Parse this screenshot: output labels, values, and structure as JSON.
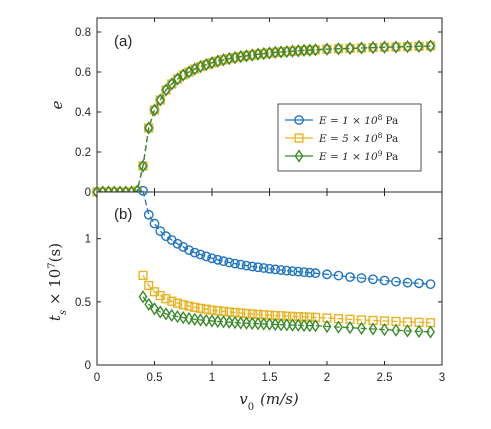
{
  "chart_data": [
    {
      "type": "line",
      "panel_label": "(a)",
      "ylabel": "e",
      "xlim": [
        0,
        3
      ],
      "ylim": [
        0,
        0.87
      ],
      "yticks": [
        0,
        0.2,
        0.4,
        0.6,
        0.8
      ],
      "ytick_labels": [
        "0",
        "0.2",
        "0.4",
        "0.6",
        "0.8"
      ],
      "grid": false,
      "legend_position": "right",
      "x_axis_ticks_only": true,
      "series": [
        {
          "name": "E = 1 × 10^8 Pa",
          "legend_main": "E = 1 × 10",
          "legend_exp": "8",
          "legend_unit": "Pa",
          "color": "#1f74c4",
          "marker": "circle",
          "x": [
            0.0,
            0.05,
            0.1,
            0.15,
            0.2,
            0.25,
            0.3,
            0.35,
            0.4,
            0.45,
            0.5,
            0.55,
            0.6,
            0.65,
            0.7,
            0.75,
            0.8,
            0.85,
            0.9,
            0.95,
            1.0,
            1.05,
            1.1,
            1.15,
            1.2,
            1.25,
            1.3,
            1.35,
            1.4,
            1.45,
            1.5,
            1.55,
            1.6,
            1.65,
            1.7,
            1.75,
            1.8,
            1.85,
            1.9,
            2.0,
            2.1,
            2.2,
            2.3,
            2.4,
            2.5,
            2.6,
            2.7,
            2.8,
            2.9
          ],
          "y": [
            0.0,
            0.0,
            0.0,
            0.0,
            0.0,
            0.0,
            0.0,
            0.005,
            0.13,
            0.32,
            0.41,
            0.46,
            0.51,
            0.54,
            0.565,
            0.585,
            0.6,
            0.615,
            0.627,
            0.637,
            0.646,
            0.654,
            0.661,
            0.667,
            0.672,
            0.677,
            0.681,
            0.685,
            0.689,
            0.692,
            0.695,
            0.698,
            0.7,
            0.702,
            0.704,
            0.706,
            0.708,
            0.709,
            0.711,
            0.714,
            0.716,
            0.718,
            0.72,
            0.722,
            0.724,
            0.725,
            0.727,
            0.728,
            0.73
          ]
        },
        {
          "name": "E = 5 × 10^8 Pa",
          "legend_main": "E = 5 × 10",
          "legend_exp": "8",
          "legend_unit": "Pa",
          "color": "#e8b322",
          "marker": "square",
          "x": [
            0.0,
            0.05,
            0.1,
            0.15,
            0.2,
            0.25,
            0.3,
            0.35,
            0.4,
            0.45,
            0.5,
            0.55,
            0.6,
            0.65,
            0.7,
            0.75,
            0.8,
            0.85,
            0.9,
            0.95,
            1.0,
            1.05,
            1.1,
            1.15,
            1.2,
            1.25,
            1.3,
            1.35,
            1.4,
            1.45,
            1.5,
            1.55,
            1.6,
            1.65,
            1.7,
            1.75,
            1.8,
            1.85,
            1.9,
            2.0,
            2.1,
            2.2,
            2.3,
            2.4,
            2.5,
            2.6,
            2.7,
            2.8,
            2.9
          ],
          "y": [
            0.0,
            0.0,
            0.0,
            0.0,
            0.0,
            0.0,
            0.0,
            0.005,
            0.13,
            0.32,
            0.41,
            0.46,
            0.51,
            0.54,
            0.565,
            0.585,
            0.6,
            0.615,
            0.627,
            0.637,
            0.646,
            0.654,
            0.661,
            0.667,
            0.672,
            0.677,
            0.681,
            0.685,
            0.689,
            0.692,
            0.695,
            0.698,
            0.7,
            0.702,
            0.704,
            0.706,
            0.708,
            0.709,
            0.711,
            0.714,
            0.716,
            0.718,
            0.72,
            0.722,
            0.724,
            0.725,
            0.727,
            0.728,
            0.73
          ]
        },
        {
          "name": "E = 1 × 10^9 Pa",
          "legend_main": "E = 1 × 10",
          "legend_exp": "9",
          "legend_unit": "Pa",
          "color": "#3b8a2a",
          "marker": "diamond",
          "x": [
            0.0,
            0.05,
            0.1,
            0.15,
            0.2,
            0.25,
            0.3,
            0.35,
            0.4,
            0.45,
            0.5,
            0.55,
            0.6,
            0.65,
            0.7,
            0.75,
            0.8,
            0.85,
            0.9,
            0.95,
            1.0,
            1.05,
            1.1,
            1.15,
            1.2,
            1.25,
            1.3,
            1.35,
            1.4,
            1.45,
            1.5,
            1.55,
            1.6,
            1.65,
            1.7,
            1.75,
            1.8,
            1.85,
            1.9,
            2.0,
            2.1,
            2.2,
            2.3,
            2.4,
            2.5,
            2.6,
            2.7,
            2.8,
            2.9
          ],
          "y": [
            0.0,
            0.0,
            0.0,
            0.0,
            0.0,
            0.0,
            0.0,
            0.005,
            0.13,
            0.32,
            0.41,
            0.46,
            0.51,
            0.54,
            0.565,
            0.585,
            0.6,
            0.615,
            0.627,
            0.637,
            0.646,
            0.654,
            0.661,
            0.667,
            0.672,
            0.677,
            0.681,
            0.685,
            0.689,
            0.692,
            0.695,
            0.698,
            0.7,
            0.702,
            0.704,
            0.706,
            0.708,
            0.709,
            0.711,
            0.714,
            0.716,
            0.718,
            0.72,
            0.722,
            0.724,
            0.725,
            0.727,
            0.728,
            0.73
          ]
        }
      ]
    },
    {
      "type": "line",
      "panel_label": "(b)",
      "ylabel_main": "t",
      "ylabel_sub": "s",
      "ylabel_rest": " × 10",
      "ylabel_exp": "7",
      "ylabel_unit": "(s)",
      "xlabel_main": "v",
      "xlabel_sub": "0",
      "xlabel_unit": "(m/s)",
      "xlim": [
        0,
        3
      ],
      "ylim": [
        0,
        1.37
      ],
      "xticks": [
        0,
        0.5,
        1,
        1.5,
        2,
        2.5,
        3
      ],
      "xtick_labels": [
        "0",
        "0.5",
        "1",
        "1.5",
        "2",
        "2.5",
        "3"
      ],
      "yticks": [
        0,
        0.5,
        1
      ],
      "ytick_labels": [
        "0",
        "0.5",
        "1"
      ],
      "grid": false,
      "series": [
        {
          "name": "E = 1 × 10^8 Pa",
          "color": "#1f74c4",
          "marker": "circle",
          "x": [
            0.4,
            0.45,
            0.5,
            0.55,
            0.6,
            0.65,
            0.7,
            0.75,
            0.8,
            0.85,
            0.9,
            0.95,
            1.0,
            1.05,
            1.1,
            1.15,
            1.2,
            1.25,
            1.3,
            1.35,
            1.4,
            1.45,
            1.5,
            1.55,
            1.6,
            1.65,
            1.7,
            1.75,
            1.8,
            1.85,
            1.9,
            2.0,
            2.1,
            2.2,
            2.3,
            2.4,
            2.5,
            2.6,
            2.7,
            2.8,
            2.9
          ],
          "y": [
            1.38,
            1.19,
            1.12,
            1.06,
            1.02,
            0.99,
            0.96,
            0.935,
            0.91,
            0.89,
            0.875,
            0.86,
            0.845,
            0.833,
            0.822,
            0.812,
            0.803,
            0.795,
            0.787,
            0.78,
            0.774,
            0.768,
            0.762,
            0.757,
            0.752,
            0.747,
            0.743,
            0.739,
            0.735,
            0.731,
            0.727,
            0.718,
            0.708,
            0.697,
            0.688,
            0.679,
            0.669,
            0.66,
            0.652,
            0.647,
            0.64
          ]
        },
        {
          "name": "E = 5 × 10^8 Pa",
          "color": "#e8b322",
          "marker": "square",
          "x": [
            0.4,
            0.45,
            0.5,
            0.55,
            0.6,
            0.65,
            0.7,
            0.75,
            0.8,
            0.85,
            0.9,
            0.95,
            1.0,
            1.05,
            1.1,
            1.15,
            1.2,
            1.25,
            1.3,
            1.35,
            1.4,
            1.45,
            1.5,
            1.55,
            1.6,
            1.65,
            1.7,
            1.75,
            1.8,
            1.85,
            1.9,
            2.0,
            2.1,
            2.2,
            2.3,
            2.4,
            2.5,
            2.6,
            2.7,
            2.8,
            2.9
          ],
          "y": [
            0.71,
            0.63,
            0.58,
            0.55,
            0.525,
            0.505,
            0.49,
            0.477,
            0.466,
            0.457,
            0.449,
            0.442,
            0.435,
            0.43,
            0.425,
            0.42,
            0.416,
            0.412,
            0.408,
            0.404,
            0.401,
            0.398,
            0.395,
            0.392,
            0.39,
            0.387,
            0.385,
            0.383,
            0.381,
            0.379,
            0.377,
            0.372,
            0.367,
            0.362,
            0.357,
            0.353,
            0.349,
            0.345,
            0.341,
            0.338,
            0.335
          ]
        },
        {
          "name": "E = 1 × 10^9 Pa",
          "color": "#3b8a2a",
          "marker": "diamond",
          "x": [
            0.4,
            0.45,
            0.5,
            0.55,
            0.6,
            0.65,
            0.7,
            0.75,
            0.8,
            0.85,
            0.9,
            0.95,
            1.0,
            1.05,
            1.1,
            1.15,
            1.2,
            1.25,
            1.3,
            1.35,
            1.4,
            1.45,
            1.5,
            1.55,
            1.6,
            1.65,
            1.7,
            1.75,
            1.8,
            1.85,
            1.9,
            2.0,
            2.1,
            2.2,
            2.3,
            2.4,
            2.5,
            2.6,
            2.7,
            2.8,
            2.9
          ],
          "y": [
            0.54,
            0.48,
            0.445,
            0.42,
            0.405,
            0.393,
            0.383,
            0.375,
            0.368,
            0.362,
            0.357,
            0.353,
            0.349,
            0.345,
            0.342,
            0.339,
            0.336,
            0.333,
            0.331,
            0.329,
            0.327,
            0.325,
            0.323,
            0.321,
            0.319,
            0.318,
            0.316,
            0.315,
            0.313,
            0.312,
            0.311,
            0.305,
            0.3,
            0.296,
            0.29,
            0.285,
            0.28,
            0.275,
            0.27,
            0.266,
            0.262
          ]
        }
      ]
    }
  ]
}
